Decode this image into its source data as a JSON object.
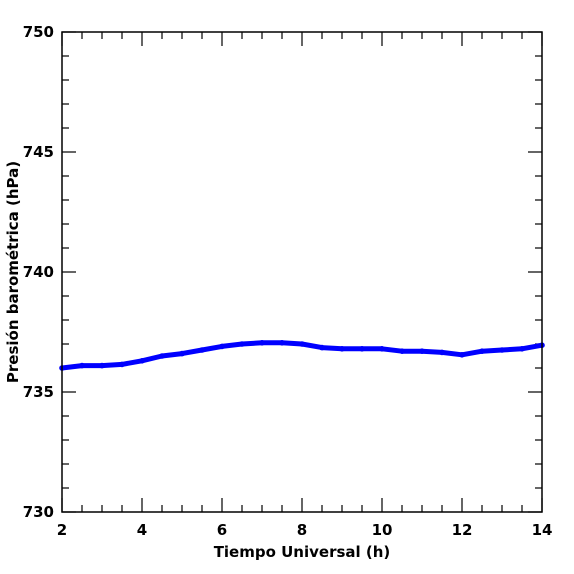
{
  "chart_data": {
    "type": "line",
    "xlabel": "Tiempo Universal (h)",
    "ylabel": "Presión barométrica (hPa)",
    "xlim": [
      2,
      14
    ],
    "ylim": [
      730,
      750
    ],
    "x_ticks": [
      "2",
      "4",
      "6",
      "8",
      "10",
      "12",
      "14"
    ],
    "y_ticks": [
      "730",
      "735",
      "740",
      "745",
      "750"
    ],
    "grid": false,
    "series": [
      {
        "color": "#0000ff",
        "x": [
          2.0,
          2.5,
          3.0,
          3.5,
          4.0,
          4.5,
          5.0,
          5.5,
          6.0,
          6.5,
          7.0,
          7.5,
          8.0,
          8.5,
          9.0,
          9.5,
          10.0,
          10.5,
          11.0,
          11.5,
          12.0,
          12.5,
          13.0,
          13.5,
          14.0
        ],
        "values": [
          736.0,
          736.1,
          736.1,
          736.15,
          736.3,
          736.5,
          736.6,
          736.75,
          736.9,
          737.0,
          737.05,
          737.05,
          737.0,
          736.85,
          736.8,
          736.8,
          736.8,
          736.7,
          736.7,
          736.65,
          736.55,
          736.7,
          736.75,
          736.8,
          736.95
        ]
      }
    ]
  }
}
